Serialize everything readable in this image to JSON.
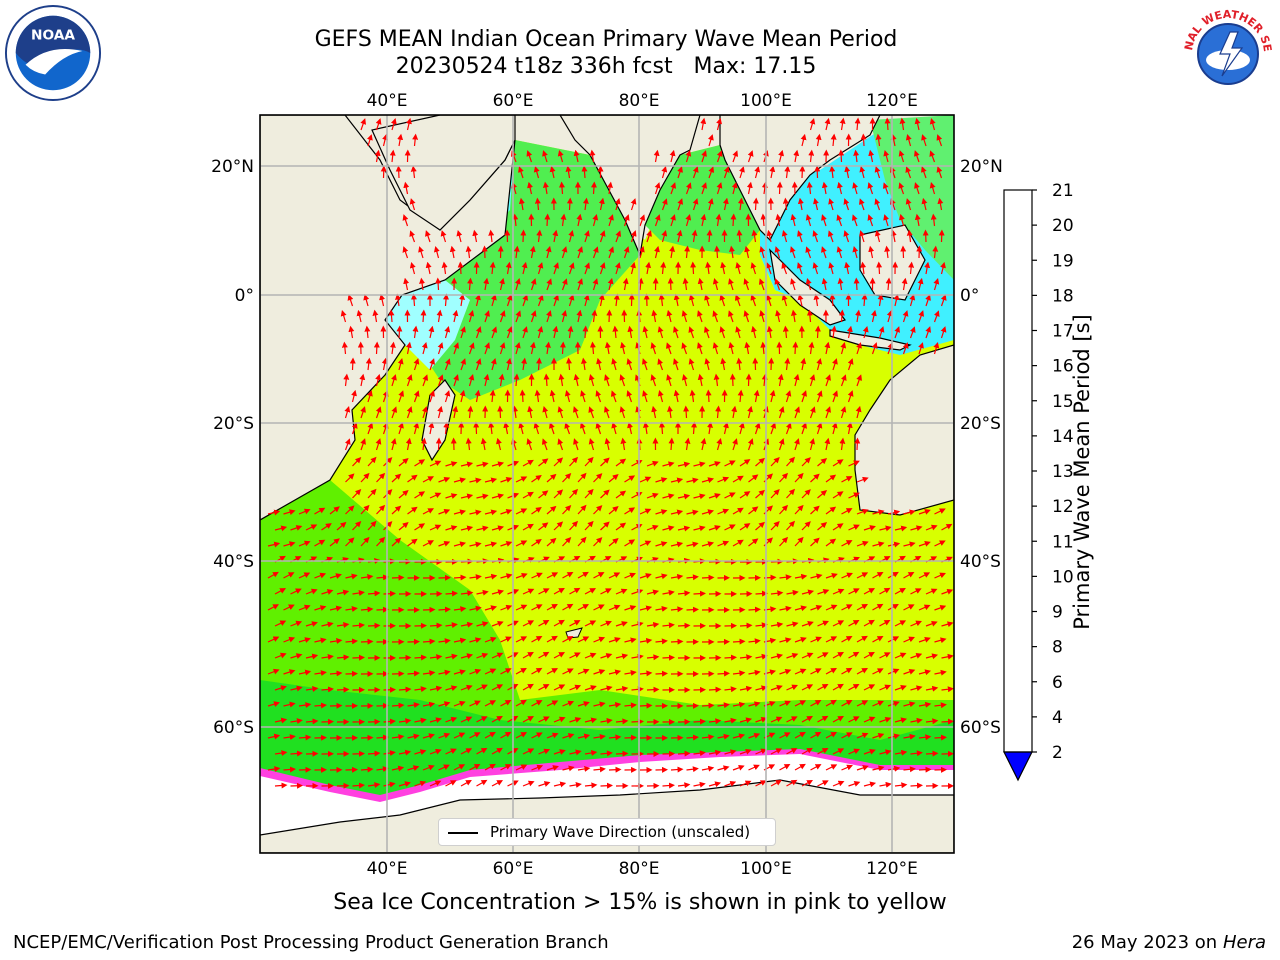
{
  "header": {
    "title_line1": "GEFS MEAN Indian Ocean Primary Wave Mean Period",
    "title_line2": "20230524 t18z 336h fcst   Max: 17.15"
  },
  "map": {
    "lon_ticks": [
      "40°E",
      "60°E",
      "80°E",
      "100°E",
      "120°E"
    ],
    "lat_ticks": [
      "20°N",
      "0°",
      "20°S",
      "40°S",
      "60°S"
    ],
    "legend_label": "Primary Wave Direction (unscaled)",
    "colors": {
      "land": "#efedde",
      "ice_free_white": "#ffffff",
      "arrow": "#ff0000",
      "grid": "#b4b4b4"
    }
  },
  "colorbar": {
    "label": "Primary Wave Mean Period [s]",
    "ticks": [
      "2",
      "4",
      "6",
      "8",
      "9",
      "10",
      "11",
      "12",
      "13",
      "14",
      "15",
      "16",
      "17",
      "18",
      "19",
      "20",
      "21"
    ],
    "colors": [
      "#0050ff",
      "#00d0ff",
      "#30f0ff",
      "#60ffff",
      "#a0ffff",
      "#50ff80",
      "#00e000",
      "#60f000",
      "#a0ff00",
      "#d0ff00",
      "#f0ff00",
      "#fff000",
      "#ffc000",
      "#ff9000",
      "#ff6000",
      "#ff3000",
      "#ff0000"
    ],
    "extend_color": "#0000ff"
  },
  "footer": {
    "sea_ice_note": "Sea Ice Concentration > 15% is shown in pink to yellow",
    "credit_left": "NCEP/EMC/Verification Post Processing Product Generation Branch",
    "credit_date": "26 May 2023 on",
    "credit_host": "Hera"
  },
  "logos": {
    "noaa_text": "NOAA",
    "nws_text": "NATIONAL WEATHER SERVICE"
  }
}
